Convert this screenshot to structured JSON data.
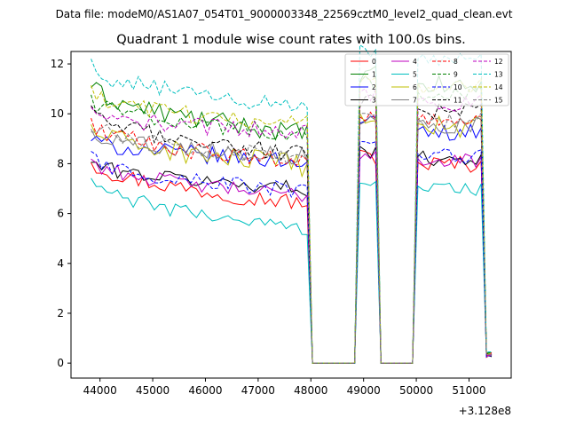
{
  "chart_data": {
    "type": "line",
    "suptitle": "Data file: modeM0/AS1A07_054T01_9000003348_22569cztM0_level2_quad_clean.evt",
    "title": "Quadrant 1 module wise count rates with 100.0s bins.",
    "xlabel": "",
    "ylabel": "",
    "x_offset_label": "+3.128e8",
    "xlim": [
      43450,
      51800
    ],
    "ylim": [
      -0.6,
      12.5
    ],
    "x_ticks": [
      44000,
      45000,
      46000,
      47000,
      48000,
      49000,
      50000,
      51000
    ],
    "x_tick_labels": [
      "44000",
      "45000",
      "46000",
      "47000",
      "48000",
      "49000",
      "50000",
      "51000"
    ],
    "y_ticks": [
      0,
      2,
      4,
      6,
      8,
      10,
      12
    ],
    "y_tick_labels": [
      "0",
      "2",
      "4",
      "6",
      "8",
      "10",
      "12"
    ],
    "legend_position": "top-right",
    "legend_columns": 4,
    "time_grid": {
      "start": 43830,
      "step": 100,
      "count": 77
    },
    "segments": [
      {
        "from": 43830,
        "to": 47930,
        "level": 1
      },
      {
        "from": 48030,
        "to": 48830,
        "level": 0
      },
      {
        "from": 48930,
        "to": 49230,
        "level": 1.12
      },
      {
        "from": 49330,
        "to": 49930,
        "level": 0
      },
      {
        "from": 50030,
        "to": 51230,
        "level": 1.08
      },
      {
        "from": 51330,
        "to": 51430,
        "level": 0.03
      }
    ],
    "series": [
      {
        "name": "0",
        "color": "#ff0000",
        "dash": "solid",
        "start": 8.2,
        "end": 6.4,
        "amp": 0.35
      },
      {
        "name": "1",
        "color": "#008000",
        "dash": "solid",
        "start": 11.2,
        "end": 9.2,
        "amp": 0.4
      },
      {
        "name": "2",
        "color": "#0000ff",
        "dash": "solid",
        "start": 9.0,
        "end": 8.1,
        "amp": 0.35
      },
      {
        "name": "3",
        "color": "#000000",
        "dash": "solid",
        "start": 8.1,
        "end": 7.0,
        "amp": 0.3
      },
      {
        "name": "4",
        "color": "#bf00bf",
        "dash": "solid",
        "start": 8.2,
        "end": 6.7,
        "amp": 0.3
      },
      {
        "name": "5",
        "color": "#00bfbf",
        "dash": "solid",
        "start": 7.4,
        "end": 5.4,
        "amp": 0.3
      },
      {
        "name": "6",
        "color": "#bfbf00",
        "dash": "solid",
        "start": 9.5,
        "end": 7.9,
        "amp": 0.45
      },
      {
        "name": "7",
        "color": "#808080",
        "dash": "solid",
        "start": 9.3,
        "end": 8.3,
        "amp": 0.35
      },
      {
        "name": "8",
        "color": "#ff0000",
        "dash": "dashed",
        "start": 9.7,
        "end": 8.0,
        "amp": 0.35
      },
      {
        "name": "9",
        "color": "#008000",
        "dash": "dashed",
        "start": 10.6,
        "end": 9.2,
        "amp": 0.35
      },
      {
        "name": "10",
        "color": "#0000ff",
        "dash": "dashed",
        "start": 8.3,
        "end": 6.9,
        "amp": 0.35
      },
      {
        "name": "11",
        "color": "#000000",
        "dash": "dashed",
        "start": 10.1,
        "end": 8.4,
        "amp": 0.35
      },
      {
        "name": "12",
        "color": "#bf00bf",
        "dash": "dashed",
        "start": 10.0,
        "end": 9.3,
        "amp": 0.35
      },
      {
        "name": "13",
        "color": "#00bfbf",
        "dash": "dashed",
        "start": 11.9,
        "end": 10.3,
        "amp": 0.35
      },
      {
        "name": "14",
        "color": "#bfbf00",
        "dash": "dashed",
        "start": 10.8,
        "end": 9.6,
        "amp": 0.35
      },
      {
        "name": "15",
        "color": "#808080",
        "dash": "dashed",
        "start": 9.6,
        "end": 8.2,
        "amp": 0.35
      }
    ]
  }
}
